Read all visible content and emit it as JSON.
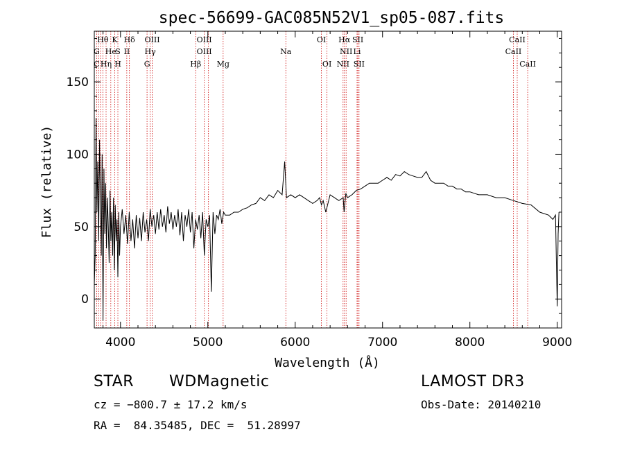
{
  "chart_data": {
    "type": "line",
    "title": "spec-56699-GAC085N52V1_sp05-087.fits",
    "xlabel": "Wavelength (Å)",
    "ylabel": "Flux (relative)",
    "xlim": [
      3700,
      9050
    ],
    "ylim": [
      -20,
      185
    ],
    "xticks": [
      4000,
      5000,
      6000,
      7000,
      8000,
      9000
    ],
    "yticks": [
      0,
      50,
      100,
      150
    ],
    "grid": false,
    "series": [
      {
        "name": "flux",
        "x": [
          3700,
          3710,
          3720,
          3730,
          3740,
          3750,
          3760,
          3770,
          3780,
          3790,
          3800,
          3810,
          3820,
          3830,
          3840,
          3850,
          3860,
          3870,
          3880,
          3890,
          3900,
          3910,
          3920,
          3930,
          3940,
          3950,
          3960,
          3970,
          3980,
          3990,
          4000,
          4020,
          4040,
          4060,
          4080,
          4100,
          4120,
          4140,
          4160,
          4180,
          4200,
          4220,
          4240,
          4260,
          4280,
          4300,
          4320,
          4340,
          4360,
          4380,
          4400,
          4420,
          4440,
          4460,
          4480,
          4500,
          4520,
          4540,
          4560,
          4580,
          4600,
          4620,
          4640,
          4660,
          4680,
          4700,
          4720,
          4740,
          4760,
          4780,
          4800,
          4820,
          4840,
          4860,
          4880,
          4900,
          4920,
          4940,
          4960,
          4980,
          5000,
          5020,
          5040,
          5060,
          5080,
          5100,
          5120,
          5140,
          5160,
          5180,
          5200,
          5250,
          5300,
          5350,
          5400,
          5450,
          5500,
          5550,
          5600,
          5650,
          5700,
          5750,
          5800,
          5850,
          5880,
          5900,
          5950,
          6000,
          6050,
          6100,
          6150,
          6200,
          6250,
          6280,
          6300,
          6320,
          6350,
          6400,
          6450,
          6500,
          6550,
          6560,
          6580,
          6600,
          6650,
          6700,
          6750,
          6800,
          6850,
          6900,
          6950,
          7000,
          7050,
          7100,
          7150,
          7200,
          7250,
          7300,
          7350,
          7400,
          7450,
          7500,
          7550,
          7600,
          7650,
          7700,
          7750,
          7800,
          7850,
          7900,
          7950,
          8000,
          8100,
          8200,
          8300,
          8400,
          8500,
          8600,
          8700,
          8800,
          8900,
          8950,
          8980,
          9000,
          9010,
          9020
        ],
        "values": [
          10,
          30,
          125,
          60,
          95,
          40,
          110,
          70,
          30,
          100,
          -15,
          90,
          45,
          80,
          35,
          70,
          50,
          25,
          75,
          40,
          60,
          30,
          70,
          20,
          65,
          40,
          55,
          15,
          60,
          30,
          50,
          62,
          45,
          58,
          38,
          60,
          40,
          55,
          35,
          58,
          42,
          56,
          40,
          60,
          46,
          55,
          40,
          62,
          50,
          58,
          45,
          60,
          48,
          62,
          50,
          58,
          46,
          64,
          52,
          60,
          48,
          58,
          50,
          62,
          44,
          60,
          40,
          58,
          50,
          62,
          46,
          60,
          35,
          55,
          48,
          58,
          42,
          60,
          30,
          55,
          50,
          58,
          5,
          60,
          45,
          58,
          55,
          62,
          52,
          60,
          58,
          58,
          60,
          60,
          62,
          63,
          65,
          66,
          70,
          68,
          72,
          70,
          75,
          72,
          95,
          70,
          72,
          70,
          72,
          70,
          68,
          66,
          68,
          70,
          65,
          68,
          60,
          72,
          70,
          68,
          70,
          60,
          73,
          70,
          72,
          75,
          76,
          78,
          80,
          80,
          80,
          82,
          84,
          82,
          86,
          85,
          88,
          86,
          85,
          84,
          84,
          88,
          82,
          80,
          80,
          80,
          78,
          78,
          76,
          76,
          74,
          74,
          72,
          72,
          70,
          70,
          68,
          66,
          65,
          60,
          58,
          55,
          58,
          -5,
          45,
          60
        ]
      }
    ],
    "line_labels": [
      {
        "label": "Hθ",
        "wavelength": 3798,
        "row": 1
      },
      {
        "label": "K",
        "wavelength": 3934,
        "row": 1
      },
      {
        "label": "Hδ",
        "wavelength": 4102,
        "row": 1
      },
      {
        "label": "OIII",
        "wavelength": 4363,
        "row": 1
      },
      {
        "label": "OIII",
        "wavelength": 4959,
        "row": 1
      },
      {
        "label": "OI",
        "wavelength": 6300,
        "row": 1
      },
      {
        "label": "Hα",
        "wavelength": 6563,
        "row": 1
      },
      {
        "label": "SII",
        "wavelength": 6717,
        "row": 1
      },
      {
        "label": "CaII",
        "wavelength": 8542,
        "row": 1
      },
      {
        "label": "G",
        "wavelength": 3727,
        "row": 2
      },
      {
        "label": "He",
        "wavelength": 3889,
        "row": 2
      },
      {
        "label": "S",
        "wavelength": 3970,
        "row": 2
      },
      {
        "label": "II",
        "wavelength": 4072,
        "row": 2
      },
      {
        "label": "Hγ",
        "wavelength": 4340,
        "row": 2
      },
      {
        "label": "OIII",
        "wavelength": 4959,
        "row": 2
      },
      {
        "label": "Na",
        "wavelength": 5893,
        "row": 2
      },
      {
        "label": "NII",
        "wavelength": 6583,
        "row": 2
      },
      {
        "label": "Li",
        "wavelength": 6708,
        "row": 2
      },
      {
        "label": "CaII",
        "wavelength": 8498,
        "row": 2
      },
      {
        "label": "C",
        "wavelength": 3727,
        "row": 3
      },
      {
        "label": "Hη",
        "wavelength": 3835,
        "row": 3
      },
      {
        "label": "H",
        "wavelength": 3970,
        "row": 3
      },
      {
        "label": "G",
        "wavelength": 4304,
        "row": 3
      },
      {
        "label": "Hβ",
        "wavelength": 4861,
        "row": 3
      },
      {
        "label": "Mg",
        "wavelength": 5175,
        "row": 3
      },
      {
        "label": "OI",
        "wavelength": 6364,
        "row": 3
      },
      {
        "label": "NII",
        "wavelength": 6548,
        "row": 3
      },
      {
        "label": "SII",
        "wavelength": 6731,
        "row": 3
      },
      {
        "label": "CaII",
        "wavelength": 8662,
        "row": 3
      }
    ],
    "line_markers": [
      3727,
      3750,
      3771,
      3798,
      3835,
      3889,
      3934,
      3970,
      4072,
      4102,
      4304,
      4340,
      4363,
      4861,
      4959,
      5007,
      5175,
      5893,
      6300,
      6364,
      6548,
      6563,
      6583,
      6708,
      6717,
      6731,
      8498,
      8542,
      8662
    ],
    "line_color": "#cc0000"
  },
  "info": {
    "object_class": "STAR",
    "subclass": "WDMagnetic",
    "survey": "LAMOST DR3",
    "redshift_text": "cz = −800.7 ± 17.2 km/s",
    "obs_date_text": "Obs-Date: 20140210",
    "coords_text": "RA =  84.35485, DEC =  51.28997"
  }
}
